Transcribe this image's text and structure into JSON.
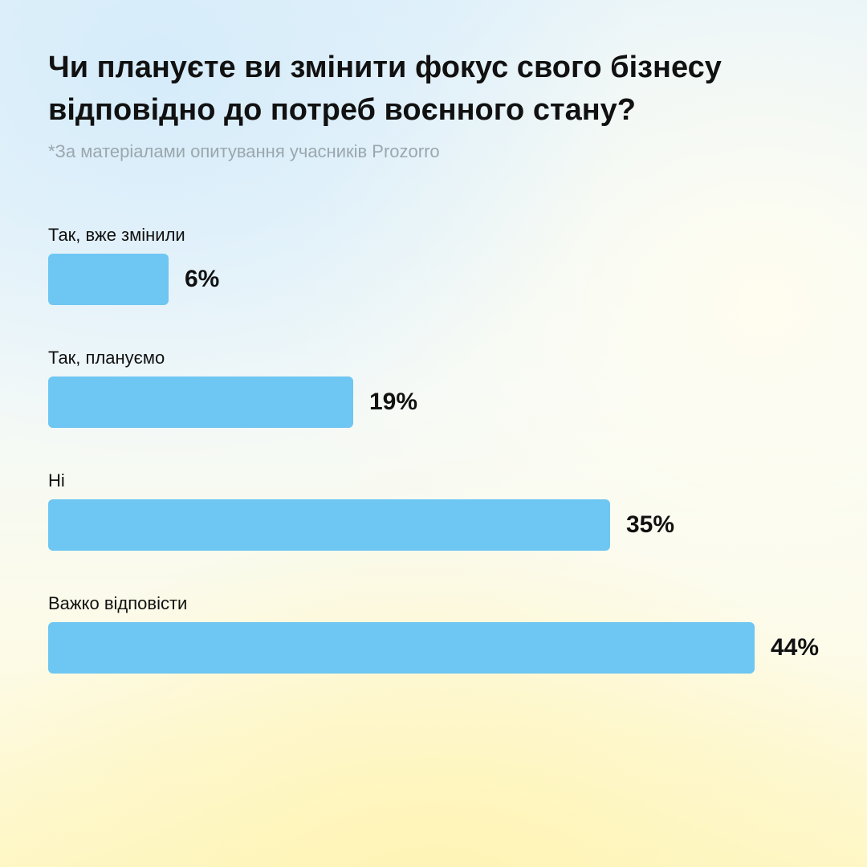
{
  "header": {
    "title": "Чи плануєте ви змінити фокус свого бізнесу відповідно до потреб воєнного стану?",
    "subtitle": "*За матеріалами опитування учасників Prozorro"
  },
  "colors": {
    "bar": "#6ec6f2",
    "text": "#111111",
    "subtitle": "#9ba7ae"
  },
  "chart_data": {
    "type": "bar",
    "orientation": "horizontal",
    "title": "Чи плануєте ви змінити фокус свого бізнесу відповідно до потреб воєнного стану?",
    "subtitle": "*За матеріалами опитування учасників Prozorro",
    "categories": [
      "Так, вже змінили",
      "Так, плануємо",
      "Ні",
      "Важко відповісти"
    ],
    "values": [
      6,
      19,
      35,
      44
    ],
    "value_labels": [
      "6%",
      "19%",
      "35%",
      "44%"
    ],
    "unit": "%",
    "xlabel": "",
    "ylabel": "",
    "grid": false
  }
}
